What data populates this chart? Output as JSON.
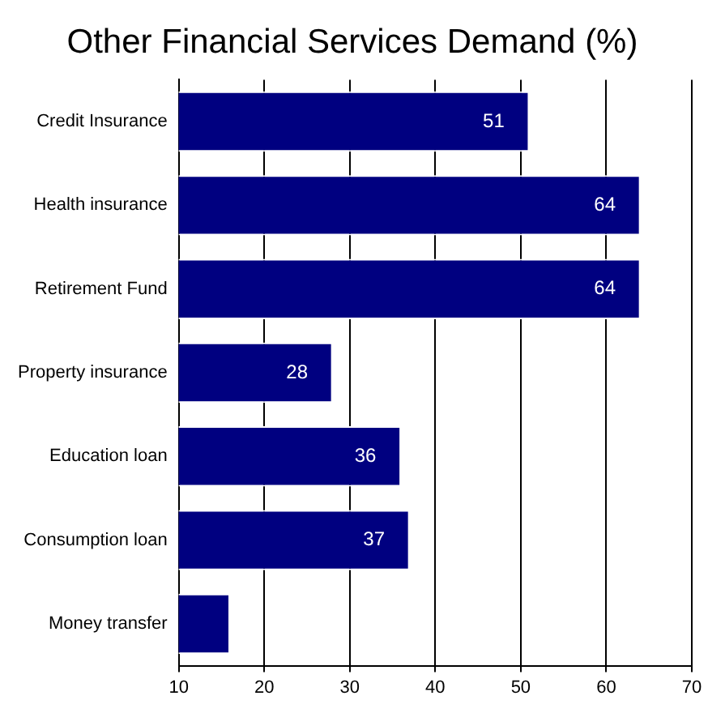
{
  "chart_data": {
    "type": "bar",
    "orientation": "horizontal",
    "title": "Other Financial Services Demand (%)",
    "categories": [
      "Credit Insurance",
      "Health insurance",
      "Retirement Fund",
      "Property insurance",
      "Education loan",
      "Consumption loan",
      "Money transfer"
    ],
    "values": [
      51,
      64,
      64,
      28,
      36,
      37,
      16
    ],
    "value_labels": [
      "51",
      "64",
      "64",
      "28",
      "36",
      "37",
      null
    ],
    "color": "#000080",
    "xlim": [
      10,
      70
    ],
    "xticks": [
      10,
      20,
      30,
      40,
      50,
      60,
      70
    ],
    "grid": "x",
    "legend": false
  }
}
